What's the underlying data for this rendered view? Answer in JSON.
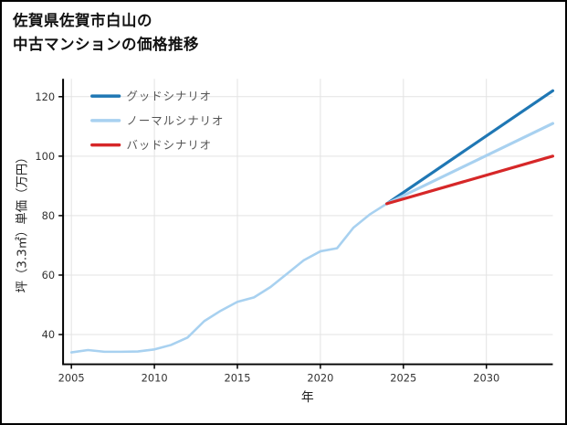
{
  "title": {
    "line1": "佐賀県佐賀市白山の",
    "line2": "中古マンションの価格推移"
  },
  "chart_data": {
    "type": "line",
    "title": "佐賀県佐賀市白山の中古マンションの価格推移",
    "xlabel": "年",
    "ylabel": "坪（3.3㎡）単価（万円）",
    "xlim": [
      2004.5,
      2034
    ],
    "ylim": [
      30,
      126
    ],
    "xticks": [
      2005,
      2010,
      2015,
      2020,
      2025,
      2030
    ],
    "yticks": [
      40,
      60,
      80,
      100,
      120
    ],
    "grid": true,
    "legend_position": "top-left-inside",
    "colors": {
      "good": "#1f77b4",
      "normal": "#a8d1f0",
      "bad": "#d62728",
      "historical": "#a8d1f0",
      "grid_line": "#e3e3e3",
      "axis": "#000000",
      "tick_text": "#333333",
      "legend_text": "#555555"
    },
    "series": [
      {
        "id": "historical",
        "color": "#a8d1f0",
        "width": 2.6,
        "x": [
          2005,
          2006,
          2007,
          2008,
          2009,
          2010,
          2011,
          2012,
          2013,
          2014,
          2015,
          2016,
          2017,
          2018,
          2019,
          2020,
          2021,
          2022,
          2023,
          2024
        ],
        "y": [
          34,
          34.8,
          34.2,
          34.2,
          34.3,
          35,
          36.5,
          39,
          44.5,
          48,
          51,
          52.5,
          56,
          60.5,
          65,
          68,
          69,
          76,
          80.5,
          84
        ]
      },
      {
        "id": "good",
        "color": "#1f77b4",
        "width": 3.2,
        "x": [
          2024,
          2034
        ],
        "y": [
          84,
          122
        ]
      },
      {
        "id": "normal",
        "color": "#a8d1f0",
        "width": 3.2,
        "x": [
          2024,
          2034
        ],
        "y": [
          84,
          111
        ]
      },
      {
        "id": "bad",
        "color": "#d62728",
        "width": 3.2,
        "x": [
          2024,
          2034
        ],
        "y": [
          84,
          100
        ]
      }
    ],
    "legend": [
      {
        "label": "グッドシナリオ",
        "color": "#1f77b4"
      },
      {
        "label": "ノーマルシナリオ",
        "color": "#a8d1f0"
      },
      {
        "label": "バッドシナリオ",
        "color": "#d62728"
      }
    ]
  }
}
